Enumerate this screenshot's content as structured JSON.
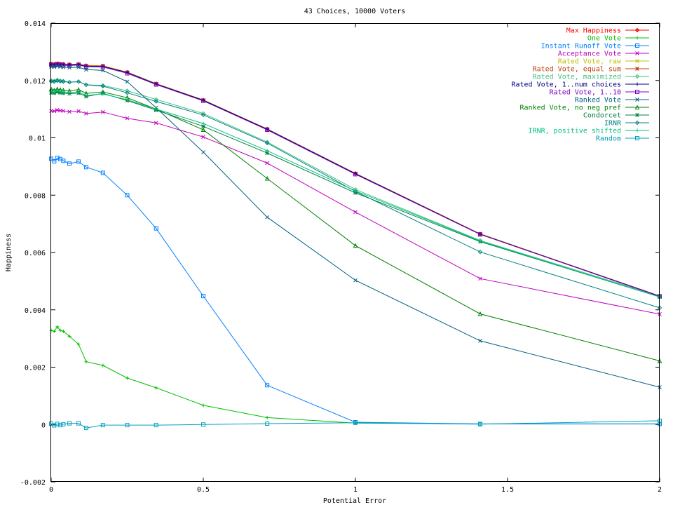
{
  "chart_data": {
    "type": "line",
    "title": "43 Choices, 10000 Voters",
    "xlabel": "Potential Error",
    "ylabel": "Happiness",
    "xlim": [
      0,
      2
    ],
    "ylim": [
      -0.002,
      0.014
    ],
    "xticks": [
      "0",
      "0.5",
      "1",
      "1.5",
      "2"
    ],
    "xtick_values": [
      0,
      0.5,
      1,
      1.5,
      2
    ],
    "yticks": [
      "-0.002",
      "0",
      "0.002",
      "0.004",
      "0.006",
      "0.008",
      "0.01",
      "0.012",
      "0.014"
    ],
    "ytick_values": [
      -0.002,
      0,
      0.002,
      0.004,
      0.006,
      0.008,
      0.01,
      0.012,
      0.014
    ],
    "grid": false,
    "legend_position": "top-right",
    "x": [
      0,
      0.01,
      0.02,
      0.03,
      0.04,
      0.06,
      0.09,
      0.115,
      0.17,
      0.25,
      0.345,
      0.5,
      0.71,
      1,
      1.41,
      2
    ],
    "series": [
      {
        "name": "Max Happiness",
        "color": "#ff0000",
        "marker": "plus-diamond",
        "values": [
          0.01258,
          0.01257,
          0.01259,
          0.01258,
          0.01257,
          0.01256,
          0.01257,
          0.01252,
          0.01251,
          0.01229,
          0.01189,
          0.01132,
          0.01031,
          0.00876,
          0.00665,
          0.00448
        ]
      },
      {
        "name": "One Vote",
        "color": "#00bf00",
        "marker": "plus",
        "values": [
          0.00328,
          0.00325,
          0.00341,
          0.00328,
          0.00325,
          0.00308,
          0.0028,
          0.00219,
          0.00206,
          0.00162,
          0.00128,
          0.00067,
          0.00024,
          5e-05,
          2e-05,
          2e-05
        ]
      },
      {
        "name": "Instant Runoff Vote",
        "color": "#0080ff",
        "marker": "square",
        "values": [
          0.00927,
          0.00918,
          0.0093,
          0.00926,
          0.0092,
          0.0091,
          0.00917,
          0.00898,
          0.00878,
          0.008,
          0.00684,
          0.00448,
          0.00137,
          8e-05,
          2e-05,
          2e-05
        ]
      },
      {
        "name": "Acceptance Vote",
        "color": "#bf00bf",
        "marker": "cross",
        "values": [
          0.01094,
          0.01093,
          0.01097,
          0.01095,
          0.01094,
          0.01091,
          0.01093,
          0.01085,
          0.0109,
          0.01068,
          0.01052,
          0.01003,
          0.00912,
          0.00741,
          0.00509,
          0.00385
        ]
      },
      {
        "name": "Rated Vote, raw",
        "color": "#bfbf00",
        "marker": "cross",
        "values": [
          0.01258,
          0.01257,
          0.01259,
          0.01258,
          0.01257,
          0.01256,
          0.01257,
          0.01252,
          0.01251,
          0.01229,
          0.01189,
          0.01132,
          0.01031,
          0.00876,
          0.00665,
          0.00448
        ]
      },
      {
        "name": "Rated Vote, equal sum",
        "color": "#bf4000",
        "marker": "star",
        "values": [
          0.01258,
          0.01256,
          0.01259,
          0.01258,
          0.01257,
          0.01255,
          0.01257,
          0.01251,
          0.0125,
          0.01228,
          0.01188,
          0.01131,
          0.0103,
          0.00875,
          0.00664,
          0.00447
        ]
      },
      {
        "name": "Rated Vote, maximized",
        "color": "#40c080",
        "marker": "diamond",
        "values": [
          0.012,
          0.01198,
          0.01202,
          0.01199,
          0.01198,
          0.01194,
          0.01196,
          0.01185,
          0.01183,
          0.01164,
          0.01134,
          0.01085,
          0.00985,
          0.0082,
          0.00642,
          0.00448
        ]
      },
      {
        "name": "Rated Vote, 1..num choices",
        "color": "#000080",
        "marker": "plus",
        "values": [
          0.01257,
          0.01256,
          0.01258,
          0.01257,
          0.01256,
          0.01255,
          0.01256,
          0.0125,
          0.01249,
          0.01228,
          0.01188,
          0.01131,
          0.0103,
          0.00875,
          0.00664,
          0.00448
        ]
      },
      {
        "name": "Rated Vote, 1..10",
        "color": "#8000bf",
        "marker": "square",
        "values": [
          0.01255,
          0.01253,
          0.01256,
          0.01254,
          0.01253,
          0.01252,
          0.01254,
          0.01248,
          0.01247,
          0.01225,
          0.01186,
          0.01129,
          0.01028,
          0.00873,
          0.00663,
          0.00447
        ]
      },
      {
        "name": "Ranked Vote",
        "color": "#006080",
        "marker": "cross",
        "values": [
          0.01248,
          0.01247,
          0.0125,
          0.01248,
          0.01246,
          0.01245,
          0.01246,
          0.01238,
          0.01235,
          0.01196,
          0.01105,
          0.0095,
          0.00723,
          0.00503,
          0.00292,
          0.0013
        ]
      },
      {
        "name": "Ranked Vote, no neg pref",
        "color": "#008000",
        "marker": "triangle",
        "values": [
          0.0117,
          0.01166,
          0.0117,
          0.01168,
          0.01166,
          0.01164,
          0.01168,
          0.01155,
          0.0116,
          0.0114,
          0.011,
          0.01028,
          0.00858,
          0.00624,
          0.00386,
          0.00222
        ]
      },
      {
        "name": "Condorcet",
        "color": "#008040",
        "marker": "star",
        "values": [
          0.01157,
          0.01156,
          0.0116,
          0.01157,
          0.01156,
          0.01154,
          0.01156,
          0.01144,
          0.01155,
          0.0113,
          0.01097,
          0.0104,
          0.00947,
          0.00808,
          0.00638,
          0.00445
        ]
      },
      {
        "name": "IRNR",
        "color": "#008080",
        "marker": "diamond",
        "values": [
          0.01197,
          0.01196,
          0.01199,
          0.01197,
          0.01196,
          0.01194,
          0.01196,
          0.01185,
          0.0118,
          0.01157,
          0.01127,
          0.0108,
          0.00982,
          0.00813,
          0.00602,
          0.00407
        ]
      },
      {
        "name": "IRNR, positive shifted",
        "color": "#00c080",
        "marker": "plus",
        "values": [
          0.01162,
          0.0116,
          0.01165,
          0.01162,
          0.0116,
          0.01158,
          0.0116,
          0.01148,
          0.01153,
          0.01133,
          0.011,
          0.0105,
          0.00955,
          0.00815,
          0.0064,
          0.00445
        ]
      },
      {
        "name": "Random",
        "color": "#00a0c0",
        "marker": "square",
        "values": [
          3e-05,
          -3e-05,
          2e-05,
          -2e-05,
          1e-05,
          4e-05,
          4e-05,
          -0.00012,
          -2e-05,
          -2e-05,
          -2e-05,
          0.0,
          3e-05,
          6e-05,
          1e-05,
          0.00013
        ]
      }
    ]
  }
}
